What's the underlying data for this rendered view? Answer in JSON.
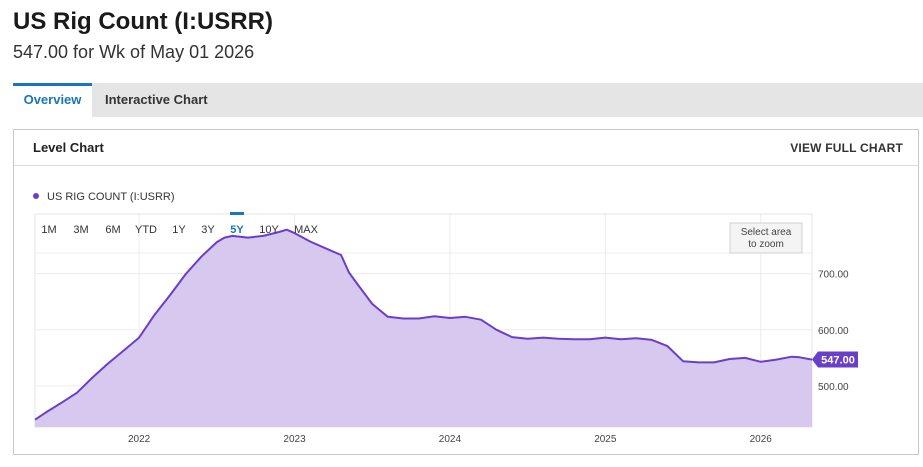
{
  "header": {
    "title": "US Rig Count (I:USRR)",
    "subtitle": "547.00 for Wk of May 01 2026"
  },
  "tabs": [
    {
      "label": "Overview",
      "active": true
    },
    {
      "label": "Interactive Chart",
      "active": false
    }
  ],
  "card": {
    "title": "Level Chart",
    "view_full": "VIEW FULL CHART"
  },
  "legend": {
    "label": "US RIG COUNT (I:USRR)",
    "color": "#6a3fc8"
  },
  "ranges": {
    "items": [
      "1M",
      "3M",
      "6M",
      "YTD",
      "1Y",
      "3Y",
      "5Y",
      "10Y",
      "MAX"
    ],
    "selected": "5Y"
  },
  "zoom_hint": {
    "line1": "Select area",
    "line2": "to zoom"
  },
  "colors": {
    "line": "#6a3fc8",
    "fill": "#d7c8ef",
    "accent": "#1b75bc",
    "badge": "#6a3fc8"
  },
  "chart_data": {
    "type": "area",
    "series": [
      {
        "x": [
          2021.33,
          2021.4,
          2021.5,
          2021.6,
          2021.7,
          2021.8,
          2021.9,
          2022.0,
          2022.1,
          2022.2,
          2022.3,
          2022.4,
          2022.5,
          2022.55,
          2022.6,
          2022.7,
          2022.8,
          2022.9,
          2022.95,
          2023.0,
          2023.1,
          2023.2,
          2023.3,
          2023.35,
          2023.4,
          2023.5,
          2023.6,
          2023.7,
          2023.8,
          2023.9,
          2024.0,
          2024.1,
          2024.2,
          2024.3,
          2024.4,
          2024.5,
          2024.6,
          2024.7,
          2024.8,
          2024.9,
          2025.0,
          2025.1,
          2025.2,
          2025.3,
          2025.4,
          2025.5,
          2025.6,
          2025.7,
          2025.8,
          2025.9,
          2026.0,
          2026.1,
          2026.2,
          2026.25,
          2026.33
        ],
        "values": [
          440,
          453,
          470,
          488,
          515,
          540,
          563,
          586,
          627,
          662,
          699,
          730,
          756,
          764,
          767,
          764,
          767,
          774,
          778,
          772,
          757,
          745,
          733,
          702,
          683,
          646,
          623,
          620,
          620,
          624,
          621,
          623,
          618,
          600,
          587,
          584,
          586,
          584,
          583,
          583,
          586,
          583,
          585,
          582,
          571,
          544,
          542,
          542,
          548,
          550,
          543,
          547,
          552,
          551,
          547
        ]
      }
    ],
    "xlim": [
      2021.33,
      2026.33
    ],
    "ylim": [
      427,
      806
    ],
    "y_ticks": [
      {
        "value": 500,
        "label": "500.00"
      },
      {
        "value": 600,
        "label": "600.00"
      },
      {
        "value": 700,
        "label": "700.00"
      }
    ],
    "x_ticks": [
      {
        "value": 2022,
        "label": "2022"
      },
      {
        "value": 2023,
        "label": "2023"
      },
      {
        "value": 2024,
        "label": "2024"
      },
      {
        "value": 2025,
        "label": "2025"
      },
      {
        "value": 2026,
        "label": "2026"
      }
    ],
    "last_value_label": "547.00",
    "last_value": 547,
    "grid": true,
    "legend_position": "top-left"
  }
}
